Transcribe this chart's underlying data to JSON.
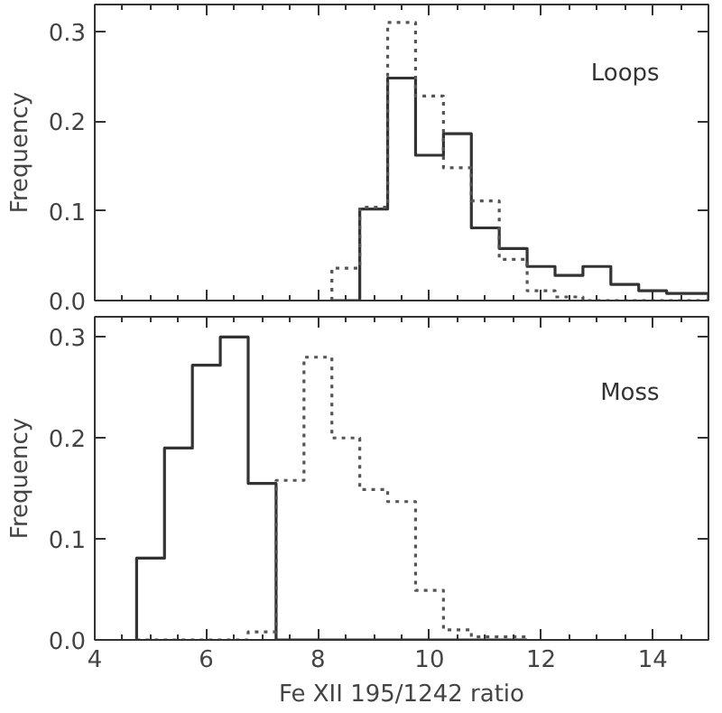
{
  "chart_data": [
    {
      "type": "histogram",
      "ylabel": "Frequency",
      "annotations": [
        "Loops"
      ],
      "xlim": [
        4,
        15
      ],
      "ylim": [
        0,
        0.33
      ],
      "tick_labels": "y",
      "grid": false,
      "xticks": [
        4,
        6,
        8,
        10,
        12,
        14
      ],
      "yticks": [
        {
          "value": 0,
          "label": "0.0"
        },
        {
          "value": 0.1,
          "label": "0.1"
        },
        {
          "value": 0.2,
          "label": "0.2"
        },
        {
          "value": 0.3,
          "label": "0.3"
        }
      ],
      "bins": [
        8.25,
        8.75,
        9.25,
        9.75,
        10.25,
        10.75,
        11.25,
        11.75,
        12.25,
        12.75,
        13.25,
        13.75,
        14.25,
        15
      ],
      "series": [
        {
          "color": "#333333",
          "line_style": "solid",
          "values": [
            0,
            0.102,
            0.248,
            0.162,
            0.186,
            0.081,
            0.058,
            0.038,
            0.028,
            0.038,
            0.018,
            0.011,
            0.008
          ]
        },
        {
          "color": "#555555",
          "line_style": "dotted",
          "values": [
            0.036,
            0.104,
            0.31,
            0.228,
            0.148,
            0.111,
            0.046,
            0.011,
            0.004,
            0,
            0,
            0,
            0
          ]
        }
      ]
    },
    {
      "type": "histogram",
      "xlabel": "Fe XII 195/1242 ratio",
      "ylabel": "Frequency",
      "annotations": [
        "Moss"
      ],
      "xlim": [
        4,
        15
      ],
      "ylim": [
        0,
        0.32
      ],
      "grid": false,
      "xticks": [
        4,
        6,
        8,
        10,
        12,
        14
      ],
      "yticks": [
        {
          "value": 0,
          "label": "0.0"
        },
        {
          "value": 0.1,
          "label": "0.1"
        },
        {
          "value": 0.2,
          "label": "0.2"
        },
        {
          "value": 0.3,
          "label": "0.3"
        }
      ],
      "bins": [
        4.75,
        5.25,
        5.75,
        6.25,
        6.75,
        7.25,
        7.75,
        8.25,
        8.75,
        9.25,
        9.75,
        10.25,
        10.75,
        11.25,
        11.75
      ],
      "series": [
        {
          "color": "#333333",
          "line_style": "solid",
          "values": [
            0.081,
            0.19,
            0.272,
            0.3,
            0.155,
            0,
            0,
            0,
            0,
            0,
            0,
            0,
            0,
            0
          ]
        },
        {
          "color": "#555555",
          "line_style": "dotted",
          "values": [
            0,
            0,
            0,
            0,
            0.008,
            0.158,
            0.28,
            0.2,
            0.149,
            0.137,
            0.049,
            0.01,
            0.003,
            0.003
          ]
        }
      ]
    }
  ]
}
